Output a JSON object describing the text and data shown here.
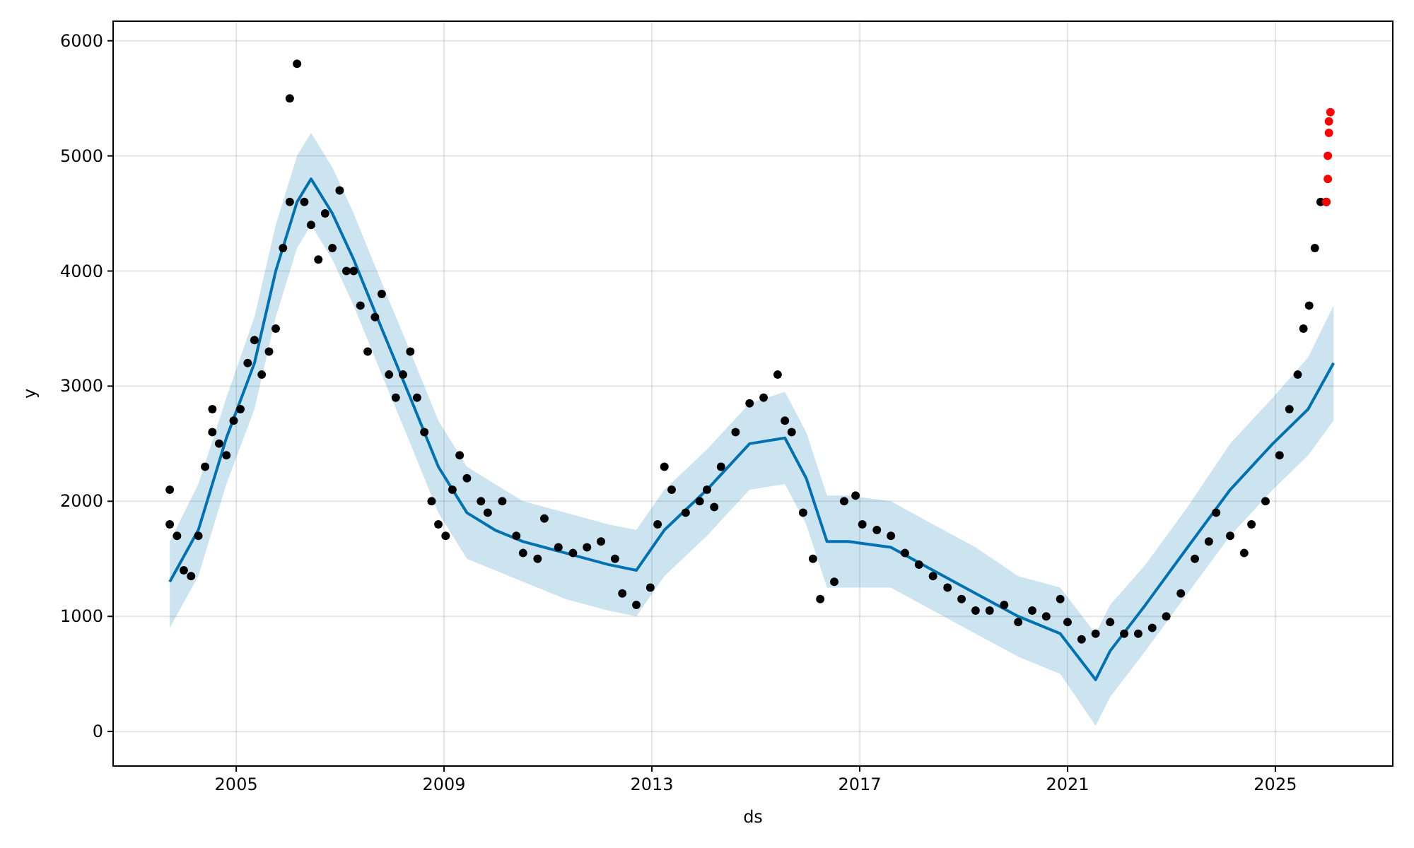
{
  "chart_data": {
    "type": "scatter",
    "xlabel": "ds",
    "ylabel": "y",
    "grid": true,
    "marker": "circle",
    "xlim": [
      2002.63,
      2027.26
    ],
    "xticks": [
      2005,
      2009,
      2013,
      2017,
      2021,
      2025
    ],
    "ylim": [
      -300,
      6170
    ],
    "yticks": [
      0,
      1000,
      2000,
      3000,
      4000,
      5000,
      6000
    ],
    "series": [
      {
        "type": "line",
        "color": "#0072b2",
        "marker": "none",
        "x": [
          2003.72,
          2004.27,
          2004.81,
          2005.35,
          2005.76,
          2006.17,
          2006.44,
          2006.85,
          2007.26,
          2007.8,
          2008.35,
          2008.89,
          2009.44,
          2009.98,
          2010.52,
          2011.34,
          2012.16,
          2012.7,
          2013.24,
          2014.06,
          2014.88,
          2015.56,
          2015.97,
          2016.37,
          2016.78,
          2017.6,
          2018.41,
          2019.23,
          2020.05,
          2020.86,
          2021.54,
          2021.82,
          2022.5,
          2023.31,
          2024.13,
          2024.95,
          2025.63,
          2026.12
        ],
        "values": [
          1300,
          1750,
          2550,
          3200,
          4000,
          4600,
          4800,
          4500,
          4100,
          3500,
          2900,
          2300,
          1900,
          1750,
          1650,
          1550,
          1450,
          1400,
          1750,
          2100,
          2500,
          2550,
          2200,
          1650,
          1650,
          1600,
          1400,
          1200,
          1000,
          850,
          450,
          700,
          1100,
          1600,
          2100,
          2500,
          2800,
          3200
        ],
        "lower": [
          900,
          1350,
          2150,
          2800,
          3600,
          4200,
          4400,
          4100,
          3700,
          3100,
          2500,
          1900,
          1500,
          1400,
          1300,
          1150,
          1050,
          1000,
          1350,
          1700,
          2100,
          2150,
          1800,
          1250,
          1250,
          1250,
          1050,
          850,
          650,
          500,
          50,
          300,
          700,
          1200,
          1700,
          2100,
          2400,
          2700
        ],
        "upper": [
          1650,
          2150,
          2900,
          3600,
          4400,
          5000,
          5200,
          4900,
          4500,
          3900,
          3300,
          2700,
          2300,
          2150,
          2000,
          1900,
          1800,
          1750,
          2100,
          2450,
          2850,
          2950,
          2600,
          2050,
          2050,
          2000,
          1800,
          1600,
          1350,
          1250,
          850,
          1100,
          1450,
          1950,
          2500,
          2900,
          3250,
          3700
        ]
      },
      {
        "color": "#000000",
        "x": [
          2003.72,
          2003.72,
          2003.86,
          2003.99,
          2004.13,
          2004.27,
          2004.4,
          2004.54,
          2004.54,
          2004.67,
          2004.81,
          2004.95,
          2005.08,
          2005.22,
          2005.35,
          2005.49,
          2005.63,
          2005.76,
          2005.9,
          2006.03,
          2006.03,
          2006.17,
          2006.31,
          2006.44,
          2006.58,
          2006.71,
          2006.85,
          2006.99,
          2007.12,
          2007.26,
          2007.39,
          2007.53,
          2007.67,
          2007.8,
          2007.94,
          2008.07,
          2008.21,
          2008.35,
          2008.48,
          2008.62,
          2008.76,
          2008.89,
          2009.03,
          2009.16,
          2009.3,
          2009.44,
          2009.71,
          2009.84,
          2010.12,
          2010.39,
          2010.52,
          2010.8,
          2010.93,
          2011.2,
          2011.48,
          2011.75,
          2012.02,
          2012.29,
          2012.43,
          2012.7,
          2012.97,
          2013.11,
          2013.24,
          2013.38,
          2013.65,
          2013.92,
          2014.06,
          2014.2,
          2014.33,
          2014.61,
          2014.88,
          2015.15,
          2015.42,
          2015.56,
          2015.69,
          2015.91,
          2016.1,
          2016.24,
          2016.51,
          2016.7,
          2016.92,
          2017.05,
          2017.33,
          2017.6,
          2017.87,
          2018.14,
          2018.41,
          2018.69,
          2018.96,
          2019.23,
          2019.5,
          2019.78,
          2020.05,
          2020.32,
          2020.59,
          2020.86,
          2021.0,
          2021.27,
          2021.54,
          2021.82,
          2022.09,
          2022.36,
          2022.63,
          2022.9,
          2023.18,
          2023.45,
          2023.72,
          2023.86,
          2024.13,
          2024.4,
          2024.54,
          2024.81,
          2025.08,
          2025.27,
          2025.43,
          2025.54,
          2025.65,
          2025.76,
          2025.87,
          2025.98
        ],
        "values": [
          2100,
          1800,
          1700,
          1400,
          1350,
          1700,
          2300,
          2600,
          2800,
          2500,
          2400,
          2700,
          2800,
          3200,
          3400,
          3100,
          3300,
          3500,
          4200,
          4600,
          5500,
          5800,
          4600,
          4400,
          4100,
          4500,
          4200,
          4700,
          4000,
          4000,
          3700,
          3300,
          3600,
          3800,
          3100,
          2900,
          3100,
          3300,
          2900,
          2600,
          2000,
          1800,
          1700,
          2100,
          2400,
          2200,
          2000,
          1900,
          2000,
          1700,
          1550,
          1500,
          1850,
          1600,
          1550,
          1600,
          1650,
          1500,
          1200,
          1100,
          1250,
          1800,
          2300,
          2100,
          1900,
          2000,
          2100,
          1950,
          2300,
          2600,
          2850,
          2900,
          3100,
          2700,
          2600,
          1900,
          1500,
          1150,
          1300,
          2000,
          2050,
          1800,
          1750,
          1700,
          1550,
          1450,
          1350,
          1250,
          1150,
          1050,
          1050,
          1100,
          950,
          1050,
          1000,
          1150,
          950,
          800,
          850,
          950,
          850,
          850,
          900,
          1000,
          1200,
          1500,
          1650,
          1900,
          1700,
          1550,
          1800,
          2000,
          2400,
          2800,
          3100,
          3500,
          3700,
          4200,
          4600,
          4600
        ]
      },
      {
        "color": "#ff0000",
        "x": [
          2025.98,
          2026.01,
          2026.01,
          2026.03,
          2026.03,
          2026.06
        ],
        "values": [
          4600,
          4800,
          5000,
          5200,
          5300,
          5380
        ]
      }
    ]
  }
}
